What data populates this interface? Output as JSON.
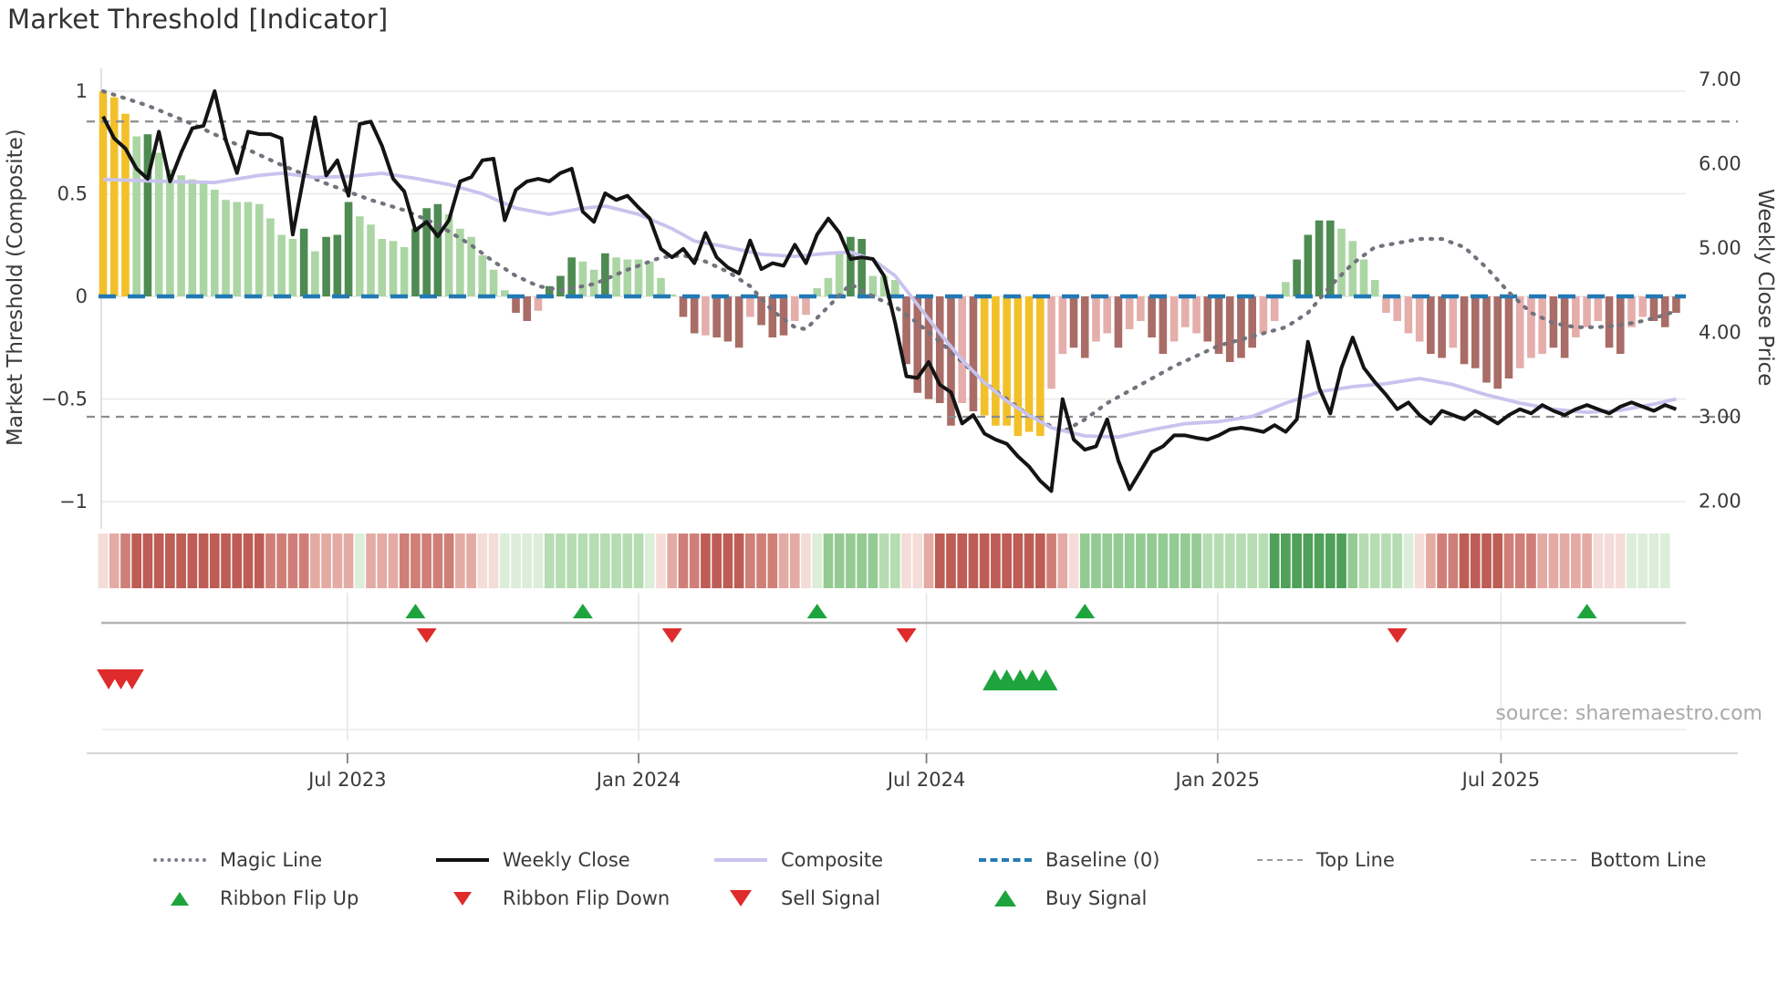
{
  "title": "Market Threshold [Indicator]",
  "source": "source: sharemaestro.com",
  "axes": {
    "left_title": "Market Threshold (Composite)",
    "right_title": "Weekly Close Price"
  },
  "legend": {
    "row1": [
      {
        "label": "Magic Line"
      },
      {
        "label": "Weekly Close"
      },
      {
        "label": "Composite"
      },
      {
        "label": "Baseline (0)"
      },
      {
        "label": "Top Line"
      },
      {
        "label": "Bottom Line"
      }
    ],
    "row2": [
      {
        "label": "Ribbon Flip Up"
      },
      {
        "label": "Ribbon Flip Down"
      },
      {
        "label": "Sell Signal"
      },
      {
        "label": "Buy Signal"
      }
    ]
  },
  "chart_data": {
    "type": "mixed",
    "subtype": "weekly composite bars + price lines + ribbon + signal markers",
    "weeks": 142,
    "x_ticks": [
      {
        "week": 21.9,
        "label": "Jul 2023"
      },
      {
        "week": 48.0,
        "label": "Jan 2024"
      },
      {
        "week": 73.8,
        "label": "Jul 2024"
      },
      {
        "week": 99.9,
        "label": "Jan 2025"
      },
      {
        "week": 125.3,
        "label": "Jul 2025"
      }
    ],
    "left_axis": {
      "ticks": [
        {
          "v": 1,
          "label": "1"
        },
        {
          "v": 0.5,
          "label": "0.5"
        },
        {
          "v": 0,
          "label": "0"
        },
        {
          "v": -0.5,
          "label": "−0.5"
        },
        {
          "v": -1,
          "label": "−1"
        }
      ],
      "grid": true
    },
    "right_axis": {
      "ticks": [
        {
          "p": 7,
          "label": "7.00"
        },
        {
          "p": 6,
          "label": "6.00"
        },
        {
          "p": 5,
          "label": "5.00"
        },
        {
          "p": 4,
          "label": "4.00"
        },
        {
          "p": 3,
          "label": "3.00"
        },
        {
          "p": 2,
          "label": "2.00"
        }
      ],
      "grid": false
    },
    "reference_lines": {
      "baseline_composite": 0,
      "top_line_price": 6.5,
      "bottom_line_price": 3.0
    },
    "colors": {
      "baseline": "#2279b5",
      "magic_line": "#73737e",
      "weekly_close": "#141414",
      "composite_line": "#c8c3ee",
      "ref_dashed": "#8c8c8c",
      "signal_green": "#1ea43d",
      "signal_red": "#df2b2b",
      "bar": {
        "Y": "#f2c029",
        "g": "#abd6a4",
        "G": "#4e8b52",
        "r": "#e5aeab",
        "R": "#a96c66"
      },
      "ribbon": {
        "P": "#f4dcd9",
        "r1": "#e4aba5",
        "r2": "#cf7f77",
        "r3": "#bd5d55",
        "g1": "#dcedda",
        "g2": "#b6dcb3",
        "g3": "#94cb93",
        "g4": "#4fa058"
      }
    },
    "bars": {
      "values": [
        1.0,
        0.97,
        0.89,
        0.78,
        0.79,
        0.7,
        0.62,
        0.59,
        0.57,
        0.55,
        0.52,
        0.47,
        0.46,
        0.46,
        0.45,
        0.38,
        0.3,
        0.28,
        0.33,
        0.22,
        0.29,
        0.3,
        0.46,
        0.39,
        0.35,
        0.28,
        0.27,
        0.24,
        0.33,
        0.43,
        0.45,
        0.4,
        0.33,
        0.29,
        0.2,
        0.13,
        0.03,
        -0.08,
        -0.12,
        -0.07,
        0.05,
        0.1,
        0.19,
        0.17,
        0.13,
        0.21,
        0.19,
        0.18,
        0.18,
        0.17,
        0.09,
        0.01,
        -0.1,
        -0.18,
        -0.19,
        -0.2,
        -0.22,
        -0.25,
        -0.1,
        -0.14,
        -0.2,
        -0.19,
        -0.12,
        -0.09,
        0.04,
        0.09,
        0.22,
        0.29,
        0.28,
        0.1,
        0.1,
        0.08,
        -0.33,
        -0.47,
        -0.5,
        -0.52,
        -0.63,
        -0.52,
        -0.56,
        -0.58,
        -0.63,
        -0.63,
        -0.68,
        -0.66,
        -0.68,
        -0.45,
        -0.28,
        -0.25,
        -0.3,
        -0.22,
        -0.18,
        -0.25,
        -0.16,
        -0.12,
        -0.2,
        -0.28,
        -0.22,
        -0.15,
        -0.18,
        -0.22,
        -0.28,
        -0.32,
        -0.3,
        -0.25,
        -0.18,
        -0.12,
        0.07,
        0.18,
        0.3,
        0.37,
        0.37,
        0.33,
        0.27,
        0.18,
        0.08,
        -0.08,
        -0.12,
        -0.18,
        -0.22,
        -0.28,
        -0.3,
        -0.25,
        -0.33,
        -0.35,
        -0.42,
        -0.45,
        -0.4,
        -0.35,
        -0.3,
        -0.28,
        -0.25,
        -0.3,
        -0.2,
        -0.15,
        -0.12,
        -0.25,
        -0.28,
        -0.15,
        -0.1,
        -0.12,
        -0.15,
        -0.08
      ],
      "colors": [
        "Y",
        "Y",
        "Y",
        "g",
        "G",
        "g",
        "g",
        "g",
        "g",
        "g",
        "g",
        "g",
        "g",
        "g",
        "g",
        "g",
        "g",
        "g",
        "G",
        "g",
        "G",
        "G",
        "G",
        "g",
        "g",
        "g",
        "g",
        "g",
        "G",
        "G",
        "G",
        "g",
        "g",
        "g",
        "g",
        "g",
        "g",
        "R",
        "R",
        "r",
        "G",
        "G",
        "G",
        "g",
        "g",
        "G",
        "g",
        "g",
        "g",
        "g",
        "g",
        "g",
        "R",
        "R",
        "r",
        "R",
        "R",
        "R",
        "r",
        "R",
        "R",
        "R",
        "r",
        "r",
        "g",
        "g",
        "g",
        "G",
        "G",
        "g",
        "g",
        "g",
        "R",
        "R",
        "R",
        "R",
        "R",
        "r",
        "R",
        "Y",
        "Y",
        "Y",
        "Y",
        "Y",
        "Y",
        "r",
        "r",
        "R",
        "R",
        "r",
        "r",
        "R",
        "r",
        "r",
        "R",
        "R",
        "r",
        "r",
        "r",
        "R",
        "R",
        "R",
        "R",
        "R",
        "r",
        "r",
        "g",
        "G",
        "G",
        "G",
        "G",
        "g",
        "g",
        "g",
        "g",
        "r",
        "r",
        "r",
        "r",
        "R",
        "R",
        "r",
        "R",
        "R",
        "R",
        "R",
        "R",
        "r",
        "r",
        "r",
        "R",
        "R",
        "r",
        "r",
        "r",
        "R",
        "R",
        "r",
        "r",
        "R",
        "R",
        "R"
      ]
    },
    "ribbon": [
      "P",
      "r1",
      "r2",
      "r3",
      "r3",
      "r3",
      "r3",
      "r3",
      "r3",
      "r3",
      "r3",
      "r3",
      "r3",
      "r3",
      "r3",
      "r2",
      "r2",
      "r2",
      "r2",
      "r1",
      "r1",
      "r1",
      "r1",
      "g1",
      "r1",
      "r1",
      "r1",
      "r2",
      "r2",
      "r2",
      "r2",
      "r2",
      "r1",
      "r1",
      "P",
      "P",
      "g1",
      "g1",
      "g1",
      "g1",
      "g2",
      "g2",
      "g2",
      "g2",
      "g2",
      "g2",
      "g2",
      "g2",
      "g2",
      "g1",
      "P",
      "r1",
      "r2",
      "r2",
      "r3",
      "r3",
      "r3",
      "r3",
      "r2",
      "r2",
      "r2",
      "r1",
      "r1",
      "P",
      "g1",
      "g3",
      "g3",
      "g3",
      "g3",
      "g3",
      "g2",
      "g2",
      "P",
      "P",
      "r1",
      "r3",
      "r3",
      "r3",
      "r3",
      "r3",
      "r3",
      "r3",
      "r3",
      "r3",
      "r3",
      "r2",
      "r1",
      "P",
      "g3",
      "g3",
      "g3",
      "g3",
      "g3",
      "g3",
      "g3",
      "g3",
      "g3",
      "g3",
      "g3",
      "g2",
      "g2",
      "g2",
      "g2",
      "g2",
      "g2",
      "g4",
      "g4",
      "g4",
      "g4",
      "g4",
      "g4",
      "g4",
      "g3",
      "g2",
      "g2",
      "g2",
      "g2",
      "g1",
      "P",
      "r1",
      "r2",
      "r2",
      "r3",
      "r3",
      "r3",
      "r3",
      "r2",
      "r2",
      "r2",
      "r1",
      "r1",
      "r1",
      "r1",
      "r1",
      "P",
      "P",
      "P",
      "g1",
      "g1",
      "g1",
      "g1"
    ],
    "weekly_close_price": [
      6.56,
      6.3,
      6.18,
      5.94,
      5.82,
      6.38,
      5.79,
      6.13,
      6.42,
      6.45,
      6.86,
      6.28,
      5.89,
      6.38,
      6.35,
      6.35,
      6.3,
      5.16,
      5.86,
      6.55,
      5.86,
      6.04,
      5.62,
      6.47,
      6.5,
      6.21,
      5.82,
      5.67,
      5.21,
      5.31,
      5.14,
      5.33,
      5.79,
      5.84,
      6.04,
      6.06,
      5.33,
      5.69,
      5.79,
      5.82,
      5.79,
      5.89,
      5.94,
      5.43,
      5.31,
      5.65,
      5.57,
      5.62,
      5.48,
      5.35,
      4.99,
      4.89,
      4.99,
      4.82,
      5.18,
      4.89,
      4.77,
      4.7,
      5.09,
      4.75,
      4.82,
      4.79,
      5.04,
      4.82,
      5.16,
      5.35,
      5.18,
      4.87,
      4.89,
      4.87,
      4.67,
      4.11,
      3.48,
      3.46,
      3.65,
      3.38,
      3.29,
      2.92,
      3.02,
      2.8,
      2.73,
      2.68,
      2.53,
      2.41,
      2.24,
      2.12,
      3.21,
      2.73,
      2.61,
      2.65,
      2.97,
      2.48,
      2.14,
      2.36,
      2.58,
      2.65,
      2.78,
      2.78,
      2.75,
      2.73,
      2.78,
      2.85,
      2.87,
      2.85,
      2.82,
      2.9,
      2.82,
      2.97,
      3.89,
      3.34,
      3.04,
      3.58,
      3.94,
      3.58,
      3.41,
      3.26,
      3.09,
      3.17,
      3.02,
      2.92,
      3.07,
      3.02,
      2.97,
      3.07,
      3.0,
      2.92,
      3.02,
      3.09,
      3.04,
      3.14,
      3.07,
      3.02,
      3.09,
      3.14,
      3.09,
      3.04,
      3.12,
      3.17,
      3.12,
      3.07,
      3.14,
      3.09
    ],
    "composite_waypoints": [
      [
        0,
        0.57
      ],
      [
        6,
        0.56
      ],
      [
        10,
        0.555
      ],
      [
        14,
        0.59
      ],
      [
        16,
        0.6
      ],
      [
        19,
        0.58
      ],
      [
        22,
        0.585
      ],
      [
        25,
        0.6
      ],
      [
        28,
        0.575
      ],
      [
        31,
        0.545
      ],
      [
        34,
        0.5
      ],
      [
        37,
        0.43
      ],
      [
        40,
        0.4
      ],
      [
        43,
        0.43
      ],
      [
        45,
        0.44
      ],
      [
        48,
        0.4
      ],
      [
        51,
        0.33
      ],
      [
        53,
        0.27
      ],
      [
        56,
        0.24
      ],
      [
        59,
        0.205
      ],
      [
        62,
        0.195
      ],
      [
        65,
        0.21
      ],
      [
        67,
        0.215
      ],
      [
        69,
        0.18
      ],
      [
        71,
        0.1
      ],
      [
        73,
        -0.04
      ],
      [
        75,
        -0.18
      ],
      [
        77,
        -0.31
      ],
      [
        79,
        -0.42
      ],
      [
        81,
        -0.51
      ],
      [
        83,
        -0.58
      ],
      [
        85,
        -0.64
      ],
      [
        88,
        -0.68
      ],
      [
        91,
        -0.685
      ],
      [
        94,
        -0.65
      ],
      [
        97,
        -0.62
      ],
      [
        100,
        -0.61
      ],
      [
        103,
        -0.585
      ],
      [
        106,
        -0.52
      ],
      [
        109,
        -0.465
      ],
      [
        112,
        -0.44
      ],
      [
        115,
        -0.425
      ],
      [
        118,
        -0.4
      ],
      [
        121,
        -0.43
      ],
      [
        124,
        -0.48
      ],
      [
        127,
        -0.52
      ],
      [
        130,
        -0.55
      ],
      [
        133,
        -0.565
      ],
      [
        136,
        -0.555
      ],
      [
        139,
        -0.525
      ],
      [
        141,
        -0.5
      ]
    ],
    "magic_line_waypoints": [
      [
        0,
        1.0
      ],
      [
        4,
        0.93
      ],
      [
        8,
        0.84
      ],
      [
        12,
        0.74
      ],
      [
        16,
        0.64
      ],
      [
        20,
        0.55
      ],
      [
        24,
        0.47
      ],
      [
        27,
        0.42
      ],
      [
        30,
        0.35
      ],
      [
        33,
        0.25
      ],
      [
        35,
        0.17
      ],
      [
        37,
        0.1
      ],
      [
        39,
        0.05
      ],
      [
        41,
        0.03
      ],
      [
        44,
        0.06
      ],
      [
        47,
        0.13
      ],
      [
        50,
        0.19
      ],
      [
        52,
        0.2
      ],
      [
        54,
        0.17
      ],
      [
        56,
        0.12
      ],
      [
        58,
        0.05
      ],
      [
        60,
        -0.07
      ],
      [
        62,
        -0.15
      ],
      [
        63,
        -0.16
      ],
      [
        65,
        -0.05
      ],
      [
        67,
        0.06
      ],
      [
        69,
        0.0
      ],
      [
        71,
        -0.05
      ],
      [
        73,
        -0.13
      ],
      [
        75,
        -0.22
      ],
      [
        77,
        -0.32
      ],
      [
        79,
        -0.42
      ],
      [
        81,
        -0.5
      ],
      [
        83,
        -0.58
      ],
      [
        86,
        -0.66
      ],
      [
        88,
        -0.6
      ],
      [
        90,
        -0.52
      ],
      [
        92,
        -0.46
      ],
      [
        94,
        -0.4
      ],
      [
        96,
        -0.34
      ],
      [
        98,
        -0.29
      ],
      [
        100,
        -0.24
      ],
      [
        102,
        -0.21
      ],
      [
        104,
        -0.18
      ],
      [
        106,
        -0.15
      ],
      [
        108,
        -0.08
      ],
      [
        110,
        0.05
      ],
      [
        112,
        0.16
      ],
      [
        114,
        0.24
      ],
      [
        116,
        0.26
      ],
      [
        118,
        0.28
      ],
      [
        120,
        0.28
      ],
      [
        122,
        0.24
      ],
      [
        124,
        0.14
      ],
      [
        126,
        0.02
      ],
      [
        128,
        -0.08
      ],
      [
        130,
        -0.13
      ],
      [
        132,
        -0.15
      ],
      [
        134,
        -0.15
      ],
      [
        136,
        -0.14
      ],
      [
        138,
        -0.12
      ],
      [
        140,
        -0.09
      ],
      [
        141,
        -0.07
      ]
    ],
    "signals": {
      "ribbon_flip_up_weeks": [
        28,
        43,
        64,
        88,
        133
      ],
      "ribbon_flip_down_weeks": [
        29,
        51,
        72,
        116
      ],
      "sell_signal_weeks": [
        0.5,
        1.6,
        2.6
      ],
      "buy_signal_weeks": [
        79.9,
        81.0,
        82.2,
        83.3,
        84.5
      ]
    }
  }
}
